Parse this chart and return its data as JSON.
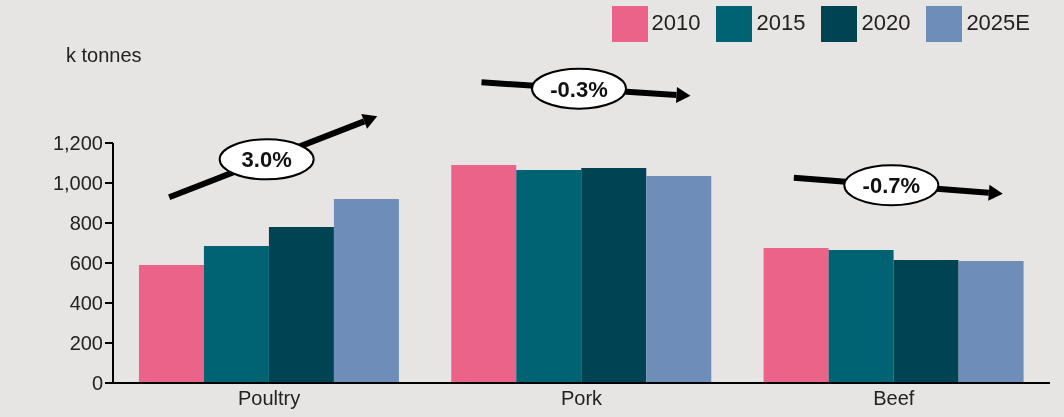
{
  "chart_data": {
    "type": "bar",
    "ylabel": "k tonnes",
    "categories": [
      "Poultry",
      "Pork",
      "Beef"
    ],
    "series": [
      {
        "name": "2010",
        "color": "#ec6389",
        "values": [
          590,
          1090,
          675
        ]
      },
      {
        "name": "2015",
        "color": "#006373",
        "values": [
          685,
          1065,
          665
        ]
      },
      {
        "name": "2020",
        "color": "#004352",
        "values": [
          780,
          1075,
          615
        ]
      },
      {
        "name": "2025E",
        "color": "#6f8db9",
        "values": [
          920,
          1035,
          610
        ]
      }
    ],
    "ylim": [
      0,
      1200
    ],
    "yticks": [
      0,
      {
        "value": 200,
        "label": "200"
      },
      {
        "value": 400,
        "label": "400"
      },
      {
        "value": 600,
        "label": "600"
      },
      {
        "value": 800,
        "label": "800"
      },
      {
        "value": 1000,
        "label": "1,000"
      },
      {
        "value": 1200,
        "label": "1,200"
      }
    ],
    "grid": false,
    "legend": "top right",
    "annotations": [
      "3.0%",
      "-0.3%",
      "-0.7%"
    ]
  }
}
